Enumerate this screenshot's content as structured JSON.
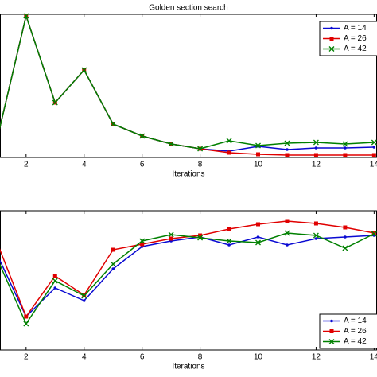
{
  "chart_data": [
    {
      "type": "line",
      "title": "Golden section search",
      "x_label": "Iterations",
      "x": [
        1,
        2,
        3,
        4,
        5,
        6,
        7,
        8,
        9,
        10,
        11,
        12,
        13,
        14
      ],
      "xlim": [
        1.1,
        14.1
      ],
      "xticks": [
        2,
        4,
        6,
        8,
        10,
        12,
        14
      ],
      "ylim": [
        0,
        180
      ],
      "legend": "top-right",
      "series": [
        {
          "name": "A = 14",
          "color": "#0a0ad2",
          "marker": "dot",
          "values": [
            23,
            178,
            69,
            110,
            42,
            27,
            17,
            11,
            8,
            14,
            10,
            12,
            12,
            13
          ]
        },
        {
          "name": "A = 26",
          "color": "#e00000",
          "marker": "square",
          "values": [
            23,
            178,
            69,
            110,
            42,
            27,
            17,
            11,
            6,
            4,
            3,
            3,
            3,
            3
          ]
        },
        {
          "name": "A = 42",
          "color": "#008000",
          "marker": "x",
          "values": [
            23,
            178,
            69,
            110,
            42,
            27,
            17,
            11,
            21,
            15,
            18,
            19,
            17,
            19
          ]
        }
      ]
    },
    {
      "type": "line",
      "x_label": "Iterations",
      "x": [
        1,
        2,
        3,
        4,
        5,
        6,
        7,
        8,
        9,
        10,
        11,
        12,
        13,
        14
      ],
      "xlim": [
        1.1,
        14.1
      ],
      "xticks": [
        2,
        4,
        6,
        8,
        10,
        12,
        14
      ],
      "ylim": [
        0,
        175
      ],
      "legend": "bottom-right",
      "series": [
        {
          "name": "A = 14",
          "color": "#0a0ad2",
          "marker": "dot",
          "values": [
            120,
            42,
            78,
            62,
            102,
            130,
            137,
            142,
            132,
            142,
            132,
            140,
            142,
            144
          ]
        },
        {
          "name": "A = 26",
          "color": "#e00000",
          "marker": "square",
          "values": [
            135,
            42,
            93,
            69,
            126,
            133,
            140,
            144,
            152,
            158,
            162,
            159,
            154,
            147
          ]
        },
        {
          "name": "A = 42",
          "color": "#008000",
          "marker": "x",
          "values": [
            115,
            33,
            87,
            68,
            108,
            137,
            145,
            141,
            137,
            135,
            147,
            144,
            128,
            146
          ]
        }
      ]
    }
  ]
}
